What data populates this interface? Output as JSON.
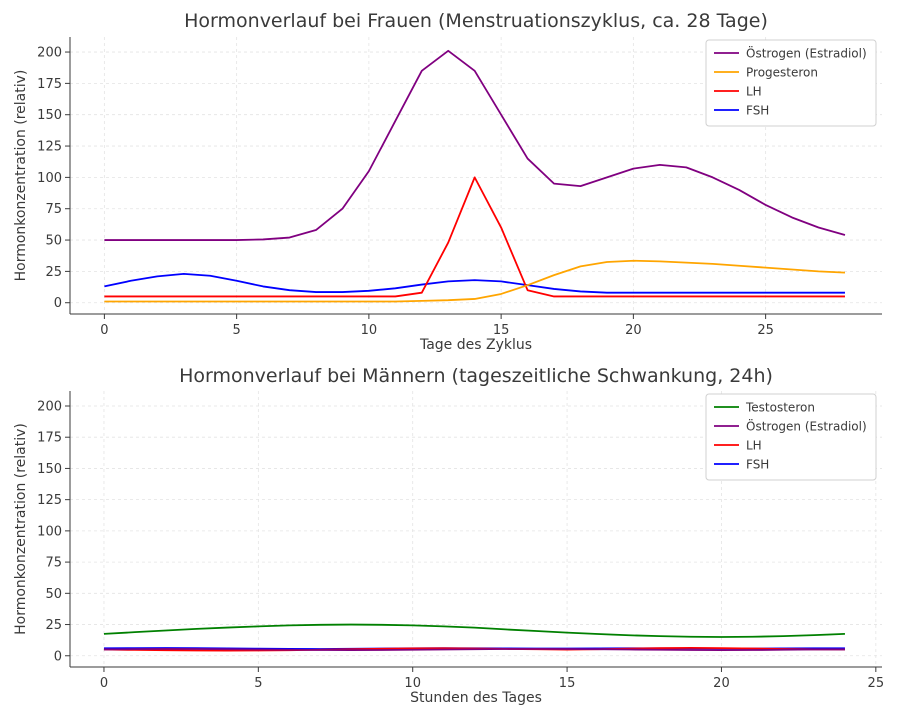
{
  "chart_data": [
    {
      "type": "line",
      "title": "Hormonverlauf bei Frauen (Menstruationszyklus, ca. 28 Tage)",
      "xlabel": "Tage des Zyklus",
      "ylabel": "Hormonkonzentration (relativ)",
      "xlim": [
        -1.3,
        29.4
      ],
      "ylim": [
        -9,
        212
      ],
      "xticks": [
        0,
        5,
        10,
        15,
        20,
        25
      ],
      "yticks": [
        0,
        25,
        50,
        75,
        100,
        125,
        150,
        175,
        200
      ],
      "grid": true,
      "legend_position": "top-right",
      "x": [
        0,
        1,
        2,
        3,
        4,
        5,
        6,
        7,
        8,
        9,
        10,
        11,
        12,
        13,
        14,
        15,
        16,
        17,
        18,
        19,
        20,
        21,
        22,
        23,
        24,
        25,
        26,
        27,
        28
      ],
      "series": [
        {
          "name": "Östrogen (Estradiol)",
          "color": "#800080",
          "values": [
            50,
            50,
            50,
            50,
            50,
            50,
            50.5,
            52,
            58,
            75,
            105,
            145,
            185,
            201,
            185,
            150,
            115,
            95,
            93,
            100,
            107,
            110,
            108,
            100,
            90,
            78,
            68,
            60,
            54
          ]
        },
        {
          "name": "Progesteron",
          "color": "#FFA500",
          "values": [
            1,
            1,
            1,
            1,
            1,
            1,
            1,
            1,
            1,
            1,
            1,
            1,
            1.5,
            2,
            3,
            7,
            14,
            22,
            29,
            32.5,
            33.5,
            33,
            32,
            31,
            29.5,
            28,
            26.5,
            25,
            24
          ]
        },
        {
          "name": "LH",
          "color": "#FF0000",
          "values": [
            5,
            5,
            5,
            5,
            5,
            5,
            5,
            5,
            5,
            5,
            5,
            5,
            8,
            48,
            100,
            60,
            10,
            5,
            5,
            5,
            5,
            5,
            5,
            5,
            5,
            5,
            5,
            5,
            5
          ]
        },
        {
          "name": "FSH",
          "color": "#0000FF",
          "values": [
            13,
            17.5,
            21,
            23,
            21.5,
            17.5,
            13,
            10,
            8.5,
            8.5,
            9.5,
            11.5,
            14.5,
            17,
            18,
            17,
            14,
            11,
            9,
            8,
            8,
            8,
            8,
            8,
            8,
            8,
            8,
            8,
            8
          ]
        }
      ]
    },
    {
      "type": "line",
      "title": "Hormonverlauf bei Männern (tageszeitliche Schwankung, 24h)",
      "xlabel": "Stunden des Tages",
      "ylabel": "Hormonkonzentration (relativ)",
      "xlim": [
        -1.1,
        25.2
      ],
      "ylim": [
        -9,
        212
      ],
      "xticks": [
        0,
        5,
        10,
        15,
        20,
        25
      ],
      "yticks": [
        0,
        25,
        50,
        75,
        100,
        125,
        150,
        175,
        200
      ],
      "grid": true,
      "legend_position": "top-right",
      "x": [
        0,
        1,
        2,
        3,
        4,
        5,
        6,
        7,
        8,
        9,
        10,
        11,
        12,
        13,
        14,
        15,
        16,
        17,
        18,
        19,
        20,
        21,
        22,
        23,
        24
      ],
      "series": [
        {
          "name": "Testosteron",
          "color": "#008000",
          "values": [
            17.5,
            18.9,
            20.2,
            21.5,
            22.6,
            23.5,
            24.3,
            24.8,
            25,
            24.8,
            24.3,
            23.5,
            22.5,
            21.1,
            19.8,
            18.5,
            17.4,
            16.4,
            15.7,
            15.2,
            15,
            15.2,
            15.7,
            16.5,
            17.5
          ]
        },
        {
          "name": "Östrogen (Estradiol)",
          "color": "#800080",
          "values": [
            5,
            5.3,
            5.5,
            5.4,
            5.2,
            5,
            4.8,
            4.6,
            4.5,
            4.6,
            4.8,
            5,
            5.2,
            5.4,
            5.5,
            5.4,
            5.2,
            5,
            4.8,
            4.6,
            4.5,
            4.6,
            4.8,
            5,
            5
          ]
        },
        {
          "name": "LH",
          "color": "#FF0000",
          "values": [
            5,
            4.7,
            4.4,
            4.2,
            4.1,
            4.2,
            4.4,
            4.8,
            5.2,
            5.6,
            5.9,
            6,
            5.8,
            5.5,
            5.2,
            4.9,
            5.2,
            5.7,
            6.1,
            6.3,
            6.1,
            5.8,
            5.4,
            5.1,
            5
          ]
        },
        {
          "name": "FSH",
          "color": "#0000FF",
          "values": [
            6,
            6.1,
            6.2,
            6.1,
            5.9,
            5.7,
            5.5,
            5.4,
            5.6,
            5.8,
            6,
            6.1,
            6,
            5.9,
            5.8,
            5.8,
            5.9,
            6,
            6,
            5.9,
            5.8,
            5.8,
            5.9,
            6,
            6
          ]
        }
      ]
    }
  ]
}
